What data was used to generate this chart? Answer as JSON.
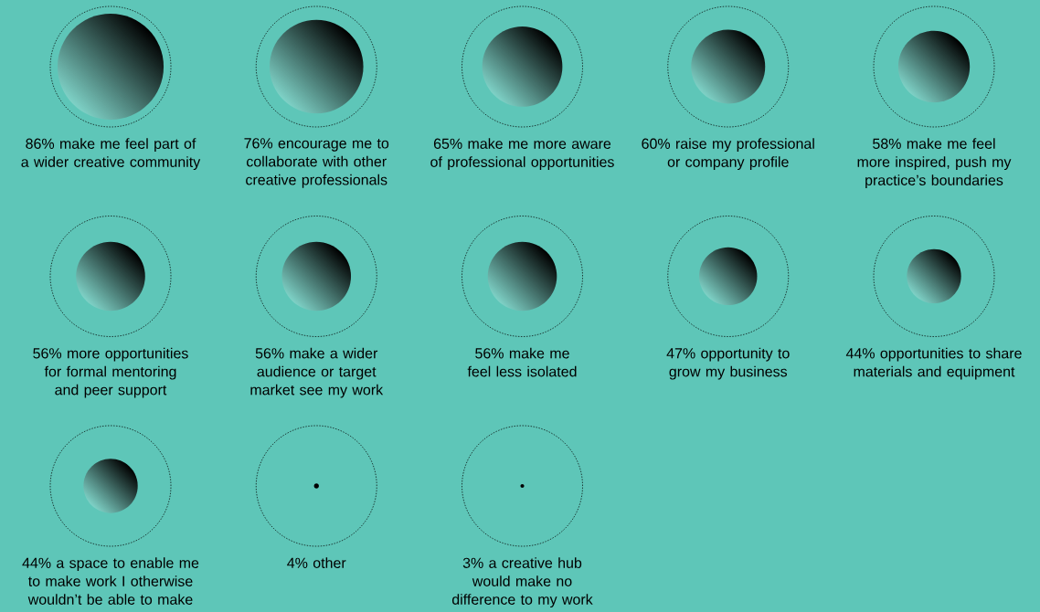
{
  "chart_data": {
    "type": "other",
    "categories": [
      "make me feel part of a wider creative community",
      "encourage me to collaborate with other creative professionals",
      "make me more aware of professional opportunities",
      "raise my professional or company profile",
      "make me feel more inspired, push my practice’s boundaries",
      "more opportunities for formal mentoring and peer support",
      "make a wider audience or target market see my work",
      "make me feel less isolated",
      "opportunity to grow my business",
      "opportunities to share materials and equipment",
      "a space to enable me to make work I otherwise wouldn’t be able to make",
      "other",
      "a creative hub would make no difference to my work"
    ],
    "values": [
      86,
      76,
      65,
      60,
      58,
      56,
      56,
      56,
      47,
      44,
      44,
      4,
      3
    ],
    "value_labels": [
      "86%",
      "76%",
      "65%",
      "60%",
      "58%",
      "56%",
      "56%",
      "56%",
      "47%",
      "44%",
      "44%",
      "4%",
      "3%"
    ],
    "color": "#000000"
  }
}
